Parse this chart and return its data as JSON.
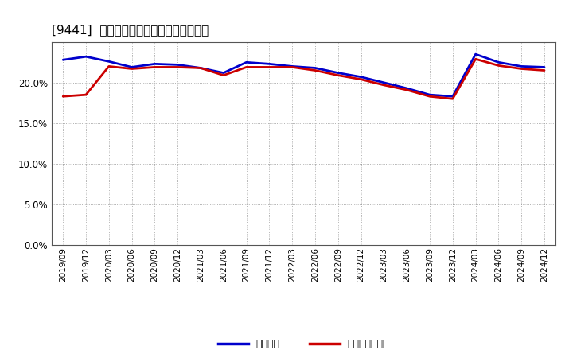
{
  "title": "[9441]  固定比率、固定長期適合率の推移",
  "x_labels": [
    "2019/09",
    "2019/12",
    "2020/03",
    "2020/06",
    "2020/09",
    "2020/12",
    "2021/03",
    "2021/06",
    "2021/09",
    "2021/12",
    "2022/03",
    "2022/06",
    "2022/09",
    "2022/12",
    "2023/03",
    "2023/06",
    "2023/09",
    "2023/12",
    "2024/03",
    "2024/06",
    "2024/09",
    "2024/12"
  ],
  "fixed_ratio": [
    22.8,
    23.2,
    22.6,
    21.9,
    22.3,
    22.2,
    21.8,
    21.2,
    22.5,
    22.3,
    22.0,
    21.8,
    21.2,
    20.7,
    20.0,
    19.3,
    18.5,
    18.3,
    23.5,
    22.5,
    22.0,
    21.9
  ],
  "fixed_long_ratio": [
    18.3,
    18.5,
    22.0,
    21.7,
    21.9,
    21.9,
    21.8,
    20.9,
    21.9,
    21.9,
    21.9,
    21.5,
    20.9,
    20.4,
    19.7,
    19.1,
    18.3,
    18.0,
    22.9,
    22.1,
    21.7,
    21.5
  ],
  "fixed_ratio_color": "#0000cc",
  "fixed_long_ratio_color": "#cc0000",
  "background_color": "#ffffff",
  "plot_bg_color": "#ffffff",
  "grid_color": "#999999",
  "ylim": [
    0,
    25
  ],
  "yticks": [
    0.0,
    5.0,
    10.0,
    15.0,
    20.0
  ],
  "legend_fixed": "固定比率",
  "legend_fixed_long": "固定長期適合率"
}
